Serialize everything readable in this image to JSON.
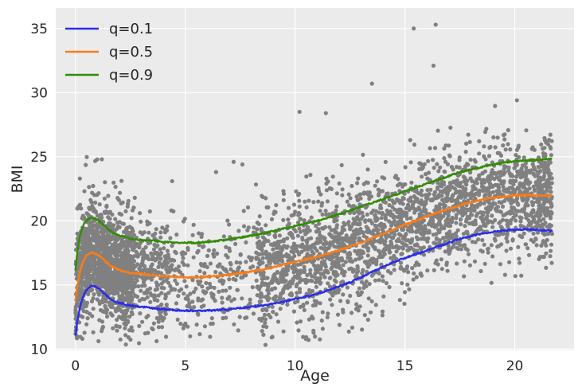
{
  "chart_data": {
    "type": "scatter",
    "title": "",
    "xlabel": "Age",
    "ylabel": "BMI",
    "xlim": [
      -0.9,
      22.7
    ],
    "ylim": [
      9.9,
      36.6
    ],
    "x_ticks": [
      0,
      5,
      10,
      15,
      20
    ],
    "y_ticks": [
      10,
      15,
      20,
      25,
      30,
      35
    ],
    "grid": true,
    "legend_position": "top-left",
    "scatter": {
      "color": "#808080",
      "description_of_density": "approx. 4000 gray points; dense cluster for ages 0–2.5 and 8–21",
      "outliers": [
        [
          15.4,
          35.0
        ],
        [
          16.4,
          35.3
        ],
        [
          16.3,
          32.1
        ],
        [
          13.5,
          30.7
        ],
        [
          20.1,
          29.4
        ],
        [
          10.2,
          28.5
        ],
        [
          11.4,
          28.4
        ],
        [
          0.2,
          23.3
        ],
        [
          1.2,
          24.8
        ],
        [
          6.4,
          23.8
        ],
        [
          7.2,
          24.6
        ],
        [
          7.6,
          24.4
        ],
        [
          4.4,
          23.1
        ],
        [
          2.7,
          21.8
        ],
        [
          2.3,
          11.9
        ],
        [
          2.9,
          11.8
        ],
        [
          0.0,
          11.2
        ]
      ]
    },
    "series": [
      {
        "name": "q=0.1",
        "color": "#2a2eec",
        "x": [
          0,
          0.1,
          0.2,
          0.3,
          0.4,
          0.5,
          0.6,
          0.7,
          0.8,
          0.9,
          1.0,
          1.2,
          1.4,
          1.6,
          1.8,
          2.0,
          2.5,
          3.0,
          3.5,
          4.0,
          4.5,
          5.0,
          5.5,
          6.0,
          6.5,
          7.0,
          7.5,
          8.0,
          8.5,
          9.0,
          9.5,
          10.0,
          10.5,
          11.0,
          11.5,
          12.0,
          12.5,
          13.0,
          13.5,
          14.0,
          14.5,
          15.0,
          15.5,
          16.0,
          16.5,
          17.0,
          17.5,
          18.0,
          18.5,
          19.0,
          19.5,
          20.0,
          20.5,
          21.0,
          21.7
        ],
        "y": [
          11.1,
          12.3,
          13.2,
          13.9,
          14.3,
          14.6,
          14.8,
          14.9,
          14.9,
          14.9,
          14.8,
          14.5,
          14.2,
          13.9,
          13.7,
          13.6,
          13.4,
          13.3,
          13.2,
          13.1,
          13.05,
          13.0,
          13.0,
          13.0,
          13.05,
          13.1,
          13.2,
          13.3,
          13.4,
          13.55,
          13.7,
          13.9,
          14.1,
          14.3,
          14.6,
          14.9,
          15.2,
          15.6,
          16.0,
          16.4,
          16.8,
          17.1,
          17.4,
          17.7,
          18.0,
          18.3,
          18.6,
          18.8,
          19.0,
          19.15,
          19.25,
          19.3,
          19.35,
          19.3,
          19.2
        ]
      },
      {
        "name": "q=0.5",
        "color": "#fa7c17",
        "x": [
          0,
          0.1,
          0.2,
          0.3,
          0.4,
          0.5,
          0.6,
          0.7,
          0.8,
          0.9,
          1.0,
          1.2,
          1.4,
          1.6,
          1.8,
          2.0,
          2.5,
          3.0,
          3.5,
          4.0,
          4.5,
          5.0,
          5.5,
          6.0,
          6.5,
          7.0,
          7.5,
          8.0,
          8.5,
          9.0,
          9.5,
          10.0,
          10.5,
          11.0,
          11.5,
          12.0,
          12.5,
          13.0,
          13.5,
          14.0,
          14.5,
          15.0,
          15.5,
          16.0,
          16.5,
          17.0,
          17.5,
          18.0,
          18.5,
          19.0,
          19.5,
          20.0,
          20.5,
          21.0,
          21.7
        ],
        "y": [
          13.8,
          15.1,
          16.0,
          16.6,
          17.0,
          17.3,
          17.4,
          17.5,
          17.5,
          17.45,
          17.4,
          17.1,
          16.8,
          16.5,
          16.3,
          16.15,
          15.95,
          15.85,
          15.75,
          15.7,
          15.65,
          15.6,
          15.6,
          15.65,
          15.7,
          15.8,
          15.9,
          16.05,
          16.2,
          16.4,
          16.6,
          16.8,
          17.0,
          17.2,
          17.45,
          17.7,
          18.0,
          18.3,
          18.65,
          19.0,
          19.35,
          19.7,
          20.0,
          20.35,
          20.65,
          20.95,
          21.2,
          21.45,
          21.65,
          21.8,
          21.9,
          22.0,
          22.0,
          22.0,
          21.95
        ]
      },
      {
        "name": "q=0.9",
        "color": "#328c06",
        "x": [
          0,
          0.1,
          0.2,
          0.3,
          0.4,
          0.5,
          0.6,
          0.7,
          0.8,
          0.9,
          1.0,
          1.2,
          1.4,
          1.6,
          1.8,
          2.0,
          2.5,
          3.0,
          3.5,
          4.0,
          4.5,
          5.0,
          5.5,
          6.0,
          6.5,
          7.0,
          7.5,
          8.0,
          8.5,
          9.0,
          9.5,
          10.0,
          10.5,
          11.0,
          11.5,
          12.0,
          12.5,
          13.0,
          13.5,
          14.0,
          14.5,
          15.0,
          15.5,
          16.0,
          16.5,
          17.0,
          17.5,
          18.0,
          18.5,
          19.0,
          19.5,
          20.0,
          20.5,
          21.0,
          21.7
        ],
        "y": [
          16.2,
          17.8,
          18.8,
          19.4,
          19.8,
          20.0,
          20.15,
          20.2,
          20.2,
          20.15,
          20.1,
          19.8,
          19.5,
          19.2,
          19.0,
          18.85,
          18.6,
          18.5,
          18.45,
          18.35,
          18.3,
          18.3,
          18.3,
          18.35,
          18.45,
          18.55,
          18.7,
          18.85,
          19.0,
          19.2,
          19.4,
          19.6,
          19.8,
          20.0,
          20.25,
          20.5,
          20.8,
          21.1,
          21.4,
          21.7,
          22.0,
          22.3,
          22.6,
          22.9,
          23.2,
          23.5,
          23.8,
          24.0,
          24.2,
          24.4,
          24.55,
          24.65,
          24.7,
          24.75,
          24.85
        ]
      }
    ]
  }
}
